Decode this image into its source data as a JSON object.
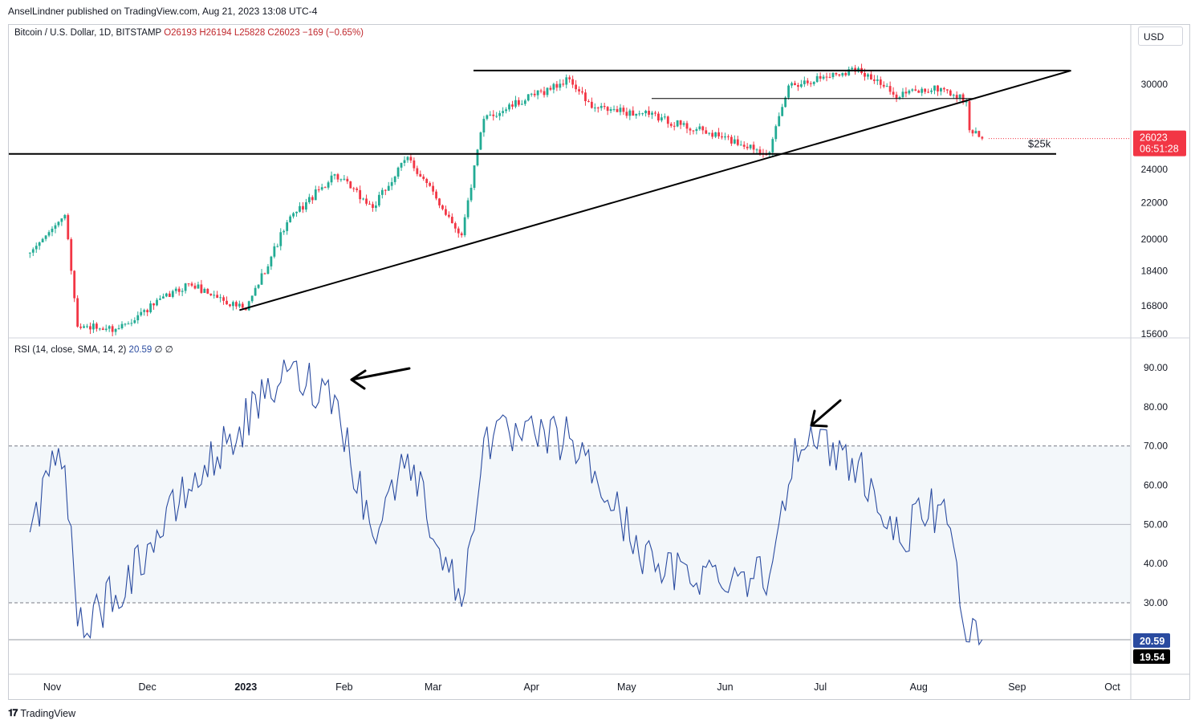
{
  "header": {
    "text": "AnselLindner published on TradingView.com, Aug 21, 2023 13:08 UTC-4"
  },
  "legend": {
    "symbol": "Bitcoin / U.S. Dollar, 1D, BITSTAMP",
    "open": "O26193",
    "high": "H26194",
    "low": "L25828",
    "close": "C26023",
    "change": "−169 (−0.65%)"
  },
  "rsi_legend": {
    "label": "RSI (14, close, SMA, 14, 2)",
    "value": "20.59",
    "extra1": "∅",
    "extra2": "∅"
  },
  "currency_button": "USD",
  "price_badge": {
    "price": "26023",
    "countdown": "06:51:28",
    "color": "#f23645"
  },
  "rsi_badges": {
    "rsi": "20.59",
    "sma": "19.54"
  },
  "annotation_label": "$25k",
  "footer": {
    "brand": "TradingView"
  },
  "colors": {
    "up": "#22ab94",
    "down": "#f23645",
    "rsi": "#2a4ba0",
    "lines": "#000000"
  },
  "chart_data": [
    {
      "type": "candlestick",
      "title": "Bitcoin / U.S. Dollar, 1D, BITSTAMP",
      "x_tick_labels": [
        "Nov",
        "Dec",
        "2023",
        "Feb",
        "Mar",
        "Apr",
        "May",
        "Jun",
        "Jul",
        "Aug",
        "Sep",
        "Oct"
      ],
      "y_ticks": [
        15600,
        16800,
        18400,
        20000,
        22000,
        24000,
        30000
      ],
      "ylim": [
        15500,
        31500
      ],
      "grid": false,
      "key_points": [
        {
          "date": "2022-10-25",
          "close": 19300
        },
        {
          "date": "2022-11-05",
          "close": 21300
        },
        {
          "date": "2022-11-09",
          "close": 15900
        },
        {
          "date": "2022-11-21",
          "close": 15800
        },
        {
          "date": "2022-12-14",
          "close": 17800
        },
        {
          "date": "2023-01-01",
          "close": 16600
        },
        {
          "date": "2023-01-14",
          "close": 20900
        },
        {
          "date": "2023-01-29",
          "close": 23700
        },
        {
          "date": "2023-02-10",
          "close": 21700
        },
        {
          "date": "2023-02-21",
          "close": 24800
        },
        {
          "date": "2023-03-10",
          "close": 20200
        },
        {
          "date": "2023-03-17",
          "close": 27400
        },
        {
          "date": "2023-04-13",
          "close": 30400
        },
        {
          "date": "2023-04-20",
          "close": 28200
        },
        {
          "date": "2023-05-08",
          "close": 27700
        },
        {
          "date": "2023-06-15",
          "close": 25100
        },
        {
          "date": "2023-06-21",
          "close": 29900
        },
        {
          "date": "2023-07-13",
          "close": 31300
        },
        {
          "date": "2023-07-24",
          "close": 29200
        },
        {
          "date": "2023-08-08",
          "close": 29700
        },
        {
          "date": "2023-08-16",
          "close": 28700
        },
        {
          "date": "2023-08-17",
          "close": 26600
        },
        {
          "date": "2023-08-21",
          "close": 26023
        }
      ],
      "annotations": {
        "horizontal_lines": [
          25000,
          31100,
          28900
        ],
        "trendline": [
          {
            "date": "2022-12-30",
            "price": 16600
          },
          {
            "date": "2023-09-18",
            "price": 31100
          }
        ],
        "label": "$25k"
      }
    },
    {
      "type": "line",
      "title": "RSI (14, close, SMA, 14, 2)",
      "y_ticks": [
        30,
        40,
        50,
        60,
        70,
        80,
        90
      ],
      "ylim": [
        12,
        96
      ],
      "bands": [
        30,
        50,
        70
      ],
      "series": [
        {
          "name": "RSI",
          "key_points": [
            {
              "date": "2022-10-25",
              "value": 48
            },
            {
              "date": "2022-11-02",
              "value": 65
            },
            {
              "date": "2022-11-05",
              "value": 65
            },
            {
              "date": "2022-11-09",
              "value": 24
            },
            {
              "date": "2022-11-21",
              "value": 32
            },
            {
              "date": "2022-12-14",
              "value": 59
            },
            {
              "date": "2023-01-14",
              "value": 89
            },
            {
              "date": "2023-01-29",
              "value": 83
            },
            {
              "date": "2023-02-10",
              "value": 47
            },
            {
              "date": "2023-02-21",
              "value": 68
            },
            {
              "date": "2023-03-10",
              "value": 29
            },
            {
              "date": "2023-03-17",
              "value": 72
            },
            {
              "date": "2023-04-13",
              "value": 72
            },
            {
              "date": "2023-05-10",
              "value": 38
            },
            {
              "date": "2023-06-15",
              "value": 37
            },
            {
              "date": "2023-06-23",
              "value": 72
            },
            {
              "date": "2023-07-13",
              "value": 66
            },
            {
              "date": "2023-07-24",
              "value": 46
            },
            {
              "date": "2023-08-08",
              "value": 55
            },
            {
              "date": "2023-08-17",
              "value": 20
            },
            {
              "date": "2023-08-21",
              "value": 20.59
            }
          ]
        },
        {
          "name": "SMA",
          "last_value": 19.54
        }
      ]
    }
  ]
}
